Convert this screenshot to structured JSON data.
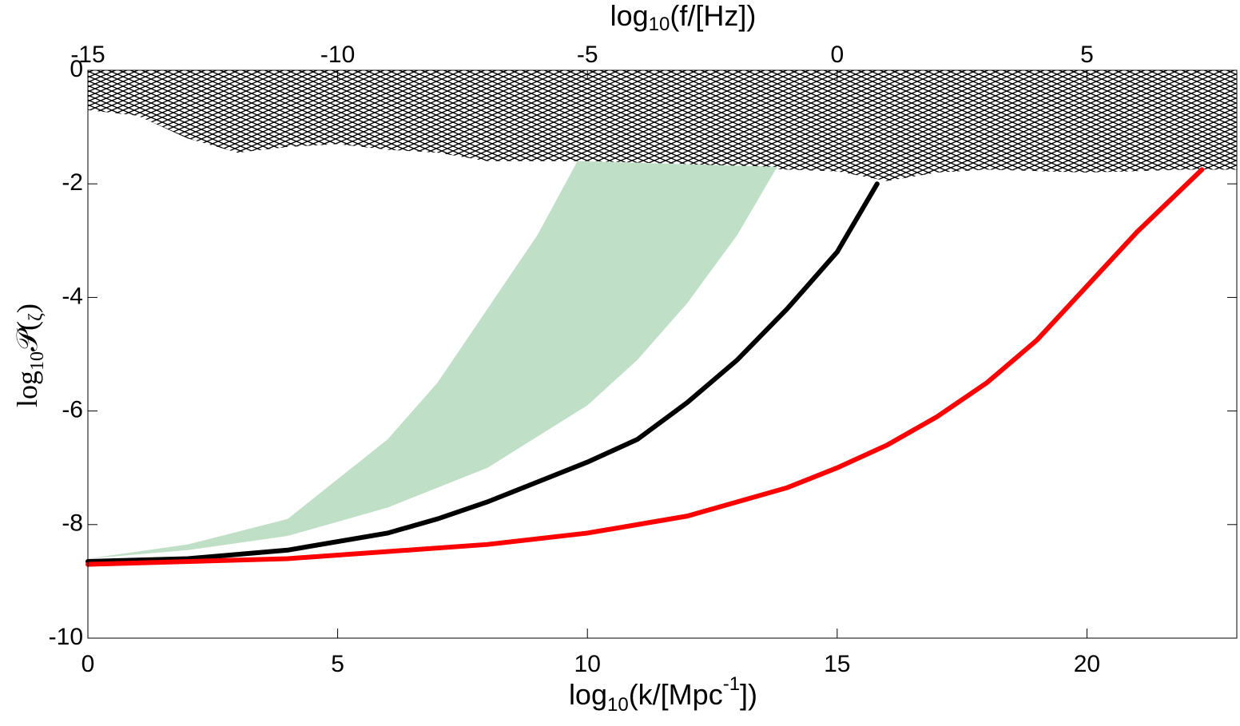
{
  "chart_data": {
    "type": "line",
    "x_label": [
      "log",
      "10",
      "(k/[Mpc",
      "-1",
      "])"
    ],
    "x2_label": [
      "log",
      "10",
      "(f/[Hz])"
    ],
    "y_label": [
      "log",
      "10",
      "𝒫(",
      "ζ",
      ")"
    ],
    "xlim": [
      0,
      23
    ],
    "xticks": [
      0,
      5,
      10,
      15,
      20
    ],
    "x2lim": [
      -15,
      8
    ],
    "x2ticks": [
      -15,
      -10,
      -5,
      0,
      5
    ],
    "ylim": [
      -10,
      0
    ],
    "yticks": [
      -10,
      -8,
      -6,
      -4,
      -2,
      0
    ],
    "grid": false,
    "areas": [
      {
        "fill": "hatch",
        "color": "#000000",
        "x": [
          0,
          1,
          2,
          3,
          4,
          5,
          6,
          7,
          8,
          10,
          12,
          14,
          15,
          16,
          17,
          18,
          20,
          22,
          23,
          23,
          0
        ],
        "y": [
          -0.7,
          -0.8,
          -1.2,
          -1.45,
          -1.35,
          -1.3,
          -1.4,
          -1.45,
          -1.6,
          -1.6,
          -1.65,
          -1.75,
          -1.78,
          -1.95,
          -1.8,
          -1.75,
          -1.8,
          -1.75,
          -1.75,
          0,
          0
        ]
      },
      {
        "fill": "solid",
        "color": "#c0dfc7",
        "x": [
          0,
          2,
          4,
          6,
          7,
          8,
          9,
          9.8,
          13.8,
          13,
          12,
          11,
          10,
          8,
          6,
          4,
          2
        ],
        "y": [
          -8.6,
          -8.35,
          -7.9,
          -6.5,
          -5.5,
          -4.2,
          -2.9,
          -1.6,
          -1.7,
          -2.9,
          -4.1,
          -5.1,
          -5.9,
          -7.0,
          -7.7,
          -8.2,
          -8.45
        ]
      }
    ],
    "series": [
      {
        "color": "#000000",
        "x": [
          0,
          2,
          4,
          6,
          7,
          8,
          9,
          10,
          11,
          12,
          13,
          14,
          15,
          15.8
        ],
        "values": [
          -8.65,
          -8.6,
          -8.45,
          -8.15,
          -7.9,
          -7.6,
          -7.25,
          -6.9,
          -6.5,
          -5.85,
          -5.1,
          -4.2,
          -3.2,
          -2.0
        ]
      },
      {
        "color": "#ff0000",
        "x": [
          0,
          4,
          8,
          10,
          12,
          14,
          15,
          16,
          17,
          18,
          19,
          20,
          21,
          22.3
        ],
        "values": [
          -8.7,
          -8.6,
          -8.35,
          -8.15,
          -7.85,
          -7.35,
          -7.0,
          -6.6,
          -6.1,
          -5.5,
          -4.75,
          -3.8,
          -2.85,
          -1.75
        ]
      }
    ]
  }
}
